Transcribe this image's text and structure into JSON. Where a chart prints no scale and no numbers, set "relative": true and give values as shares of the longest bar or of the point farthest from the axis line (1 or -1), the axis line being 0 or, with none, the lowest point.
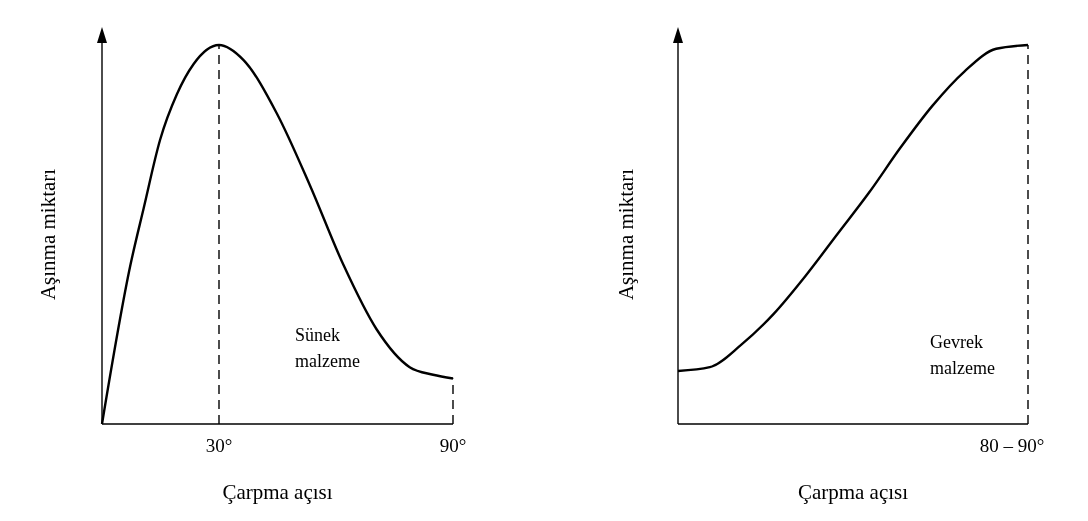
{
  "chart_data": [
    {
      "type": "line",
      "xlabel": "Çarpma açısı",
      "ylabel": "Aşınma miktarı",
      "relative": true,
      "xlim": [
        0,
        90
      ],
      "xticks": [
        {
          "value": 30,
          "label": "30°"
        },
        {
          "value": 90,
          "label": "90°"
        }
      ],
      "series": [
        {
          "color": "#000000",
          "x": [
            0,
            7.3,
            10.7,
            14.9,
            19.2,
            23.5,
            30,
            36.3,
            44.8,
            53.3,
            61.9,
            70.4,
            78.9,
            84.9,
            90
          ],
          "values": [
            0,
            0.42,
            0.57,
            0.75,
            0.87,
            0.95,
            1,
            0.96,
            0.82,
            0.63,
            0.42,
            0.25,
            0.15,
            0.13,
            0.12
          ]
        }
      ],
      "ref_lines": [
        {
          "axis": "x",
          "value": 30,
          "line_style": "dashed"
        },
        {
          "axis": "x",
          "value": 90,
          "line_style": "dashed"
        }
      ],
      "annotations": [
        "Sünek malzeme"
      ]
    },
    {
      "type": "line",
      "xlabel": "Çarpma açısı",
      "ylabel": "Aşınma miktarı",
      "relative": true,
      "categories": [
        null,
        null,
        null,
        null,
        null,
        null,
        null,
        null,
        null,
        null,
        null,
        null
      ],
      "series": [
        {
          "color": "#000000",
          "values": [
            0.14,
            0.15,
            0.21,
            0.29,
            0.39,
            0.5,
            0.61,
            0.73,
            0.84,
            0.93,
            0.99,
            1
          ]
        }
      ],
      "annotations": [
        "Gevrek malzeme",
        "80 – 90°"
      ]
    }
  ]
}
